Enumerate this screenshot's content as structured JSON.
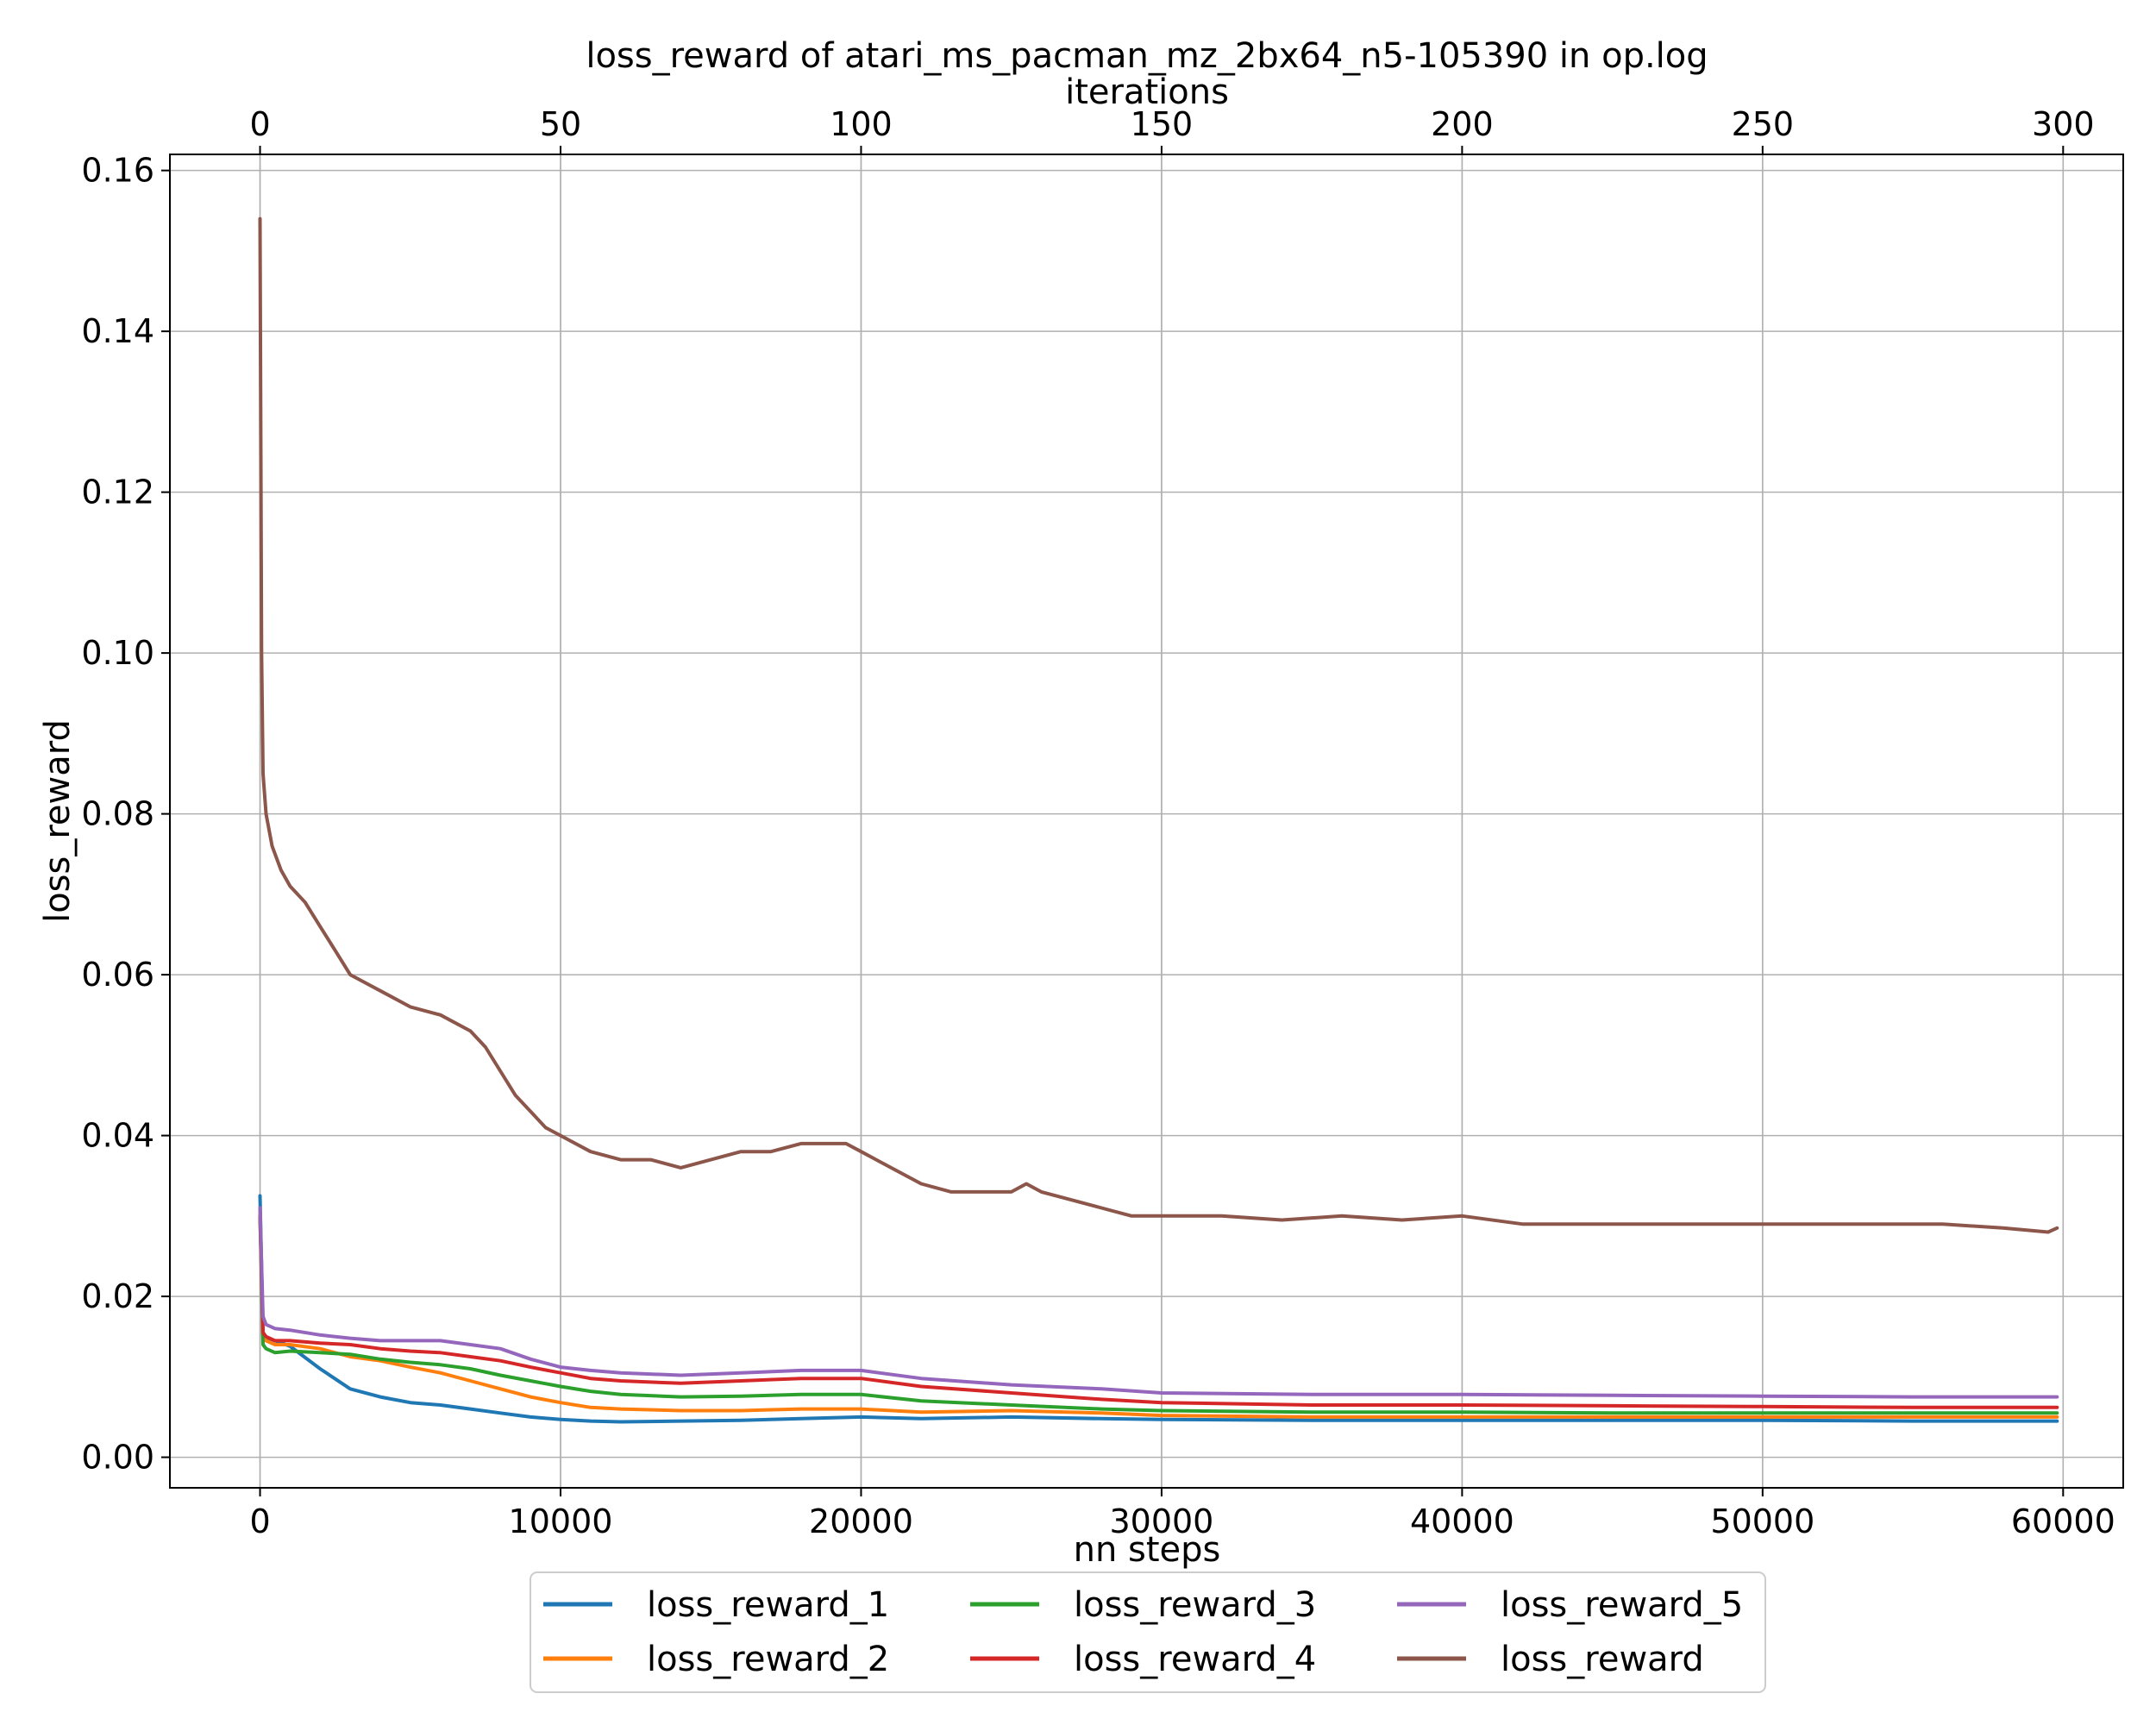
{
  "chart_data": {
    "type": "line",
    "title": "loss_reward of atari_ms_pacman_mz_2bx64_n5-105390 in op.log",
    "xlabel": "nn steps",
    "ylabel": "loss_reward",
    "x2label": "iterations",
    "xlim": [
      -3000,
      62000
    ],
    "ylim": [
      -0.0038,
      0.162
    ],
    "x2lim": [
      -15,
      310
    ],
    "xticks": [
      0,
      10000,
      20000,
      30000,
      40000,
      50000,
      60000
    ],
    "xtick_labels": [
      "0",
      "10000",
      "20000",
      "30000",
      "40000",
      "50000",
      "60000"
    ],
    "yticks": [
      0.0,
      0.02,
      0.04,
      0.06,
      0.08,
      0.1,
      0.12,
      0.14,
      0.16
    ],
    "ytick_labels": [
      "0.00",
      "0.02",
      "0.04",
      "0.06",
      "0.08",
      "0.10",
      "0.12",
      "0.14",
      "0.16"
    ],
    "x2ticks": [
      0,
      50,
      100,
      150,
      200,
      250,
      300
    ],
    "x2tick_labels": [
      "0",
      "50",
      "100",
      "150",
      "200",
      "250",
      "300"
    ],
    "grid": true,
    "legend_position": "bottom-center, below axis",
    "series": [
      {
        "name": "loss_reward_1",
        "color": "#1f77b4",
        "x": [
          0,
          100,
          200,
          500,
          1000,
          2000,
          3000,
          4000,
          5000,
          6000,
          7000,
          8000,
          9000,
          10000,
          11000,
          12000,
          14000,
          16000,
          18000,
          20000,
          22000,
          25000,
          28000,
          30000,
          35000,
          40000,
          45000,
          50000,
          55000,
          59800
        ],
        "y": [
          0.0325,
          0.015,
          0.0148,
          0.0145,
          0.0138,
          0.011,
          0.0085,
          0.0075,
          0.0068,
          0.0065,
          0.006,
          0.0055,
          0.005,
          0.0047,
          0.0045,
          0.0044,
          0.0045,
          0.0046,
          0.0048,
          0.005,
          0.0048,
          0.005,
          0.0048,
          0.0047,
          0.0046,
          0.0046,
          0.0046,
          0.0046,
          0.0045,
          0.0045
        ]
      },
      {
        "name": "loss_reward_2",
        "color": "#ff7f0e",
        "x": [
          0,
          100,
          200,
          500,
          1000,
          2000,
          3000,
          4000,
          5000,
          6000,
          7000,
          8000,
          9000,
          10000,
          11000,
          12000,
          14000,
          16000,
          18000,
          20000,
          22000,
          25000,
          28000,
          30000,
          35000,
          40000,
          45000,
          50000,
          55000,
          59800
        ],
        "y": [
          0.031,
          0.015,
          0.0145,
          0.014,
          0.014,
          0.0135,
          0.0125,
          0.012,
          0.0112,
          0.0105,
          0.0095,
          0.0085,
          0.0075,
          0.0068,
          0.0062,
          0.006,
          0.0058,
          0.0058,
          0.006,
          0.006,
          0.0056,
          0.0058,
          0.0055,
          0.0052,
          0.005,
          0.005,
          0.005,
          0.005,
          0.005,
          0.005
        ]
      },
      {
        "name": "loss_reward_3",
        "color": "#2ca02c",
        "x": [
          0,
          100,
          200,
          500,
          1000,
          2000,
          3000,
          4000,
          5000,
          6000,
          7000,
          8000,
          9000,
          10000,
          11000,
          12000,
          14000,
          16000,
          18000,
          20000,
          22000,
          25000,
          28000,
          30000,
          35000,
          40000,
          45000,
          50000,
          55000,
          59800
        ],
        "y": [
          0.03,
          0.014,
          0.0135,
          0.013,
          0.0132,
          0.013,
          0.0128,
          0.0122,
          0.0118,
          0.0115,
          0.011,
          0.0102,
          0.0095,
          0.0088,
          0.0082,
          0.0078,
          0.0075,
          0.0076,
          0.0078,
          0.0078,
          0.007,
          0.0065,
          0.006,
          0.0058,
          0.0056,
          0.0056,
          0.0055,
          0.0055,
          0.0055,
          0.0055
        ]
      },
      {
        "name": "loss_reward_4",
        "color": "#d62728",
        "x": [
          0,
          100,
          200,
          500,
          1000,
          2000,
          3000,
          4000,
          5000,
          6000,
          7000,
          8000,
          9000,
          10000,
          11000,
          12000,
          14000,
          16000,
          18000,
          20000,
          22000,
          25000,
          28000,
          30000,
          35000,
          40000,
          45000,
          50000,
          55000,
          59800
        ],
        "y": [
          0.03,
          0.0155,
          0.015,
          0.0145,
          0.0145,
          0.0142,
          0.014,
          0.0135,
          0.0132,
          0.013,
          0.0125,
          0.012,
          0.0112,
          0.0105,
          0.0098,
          0.0095,
          0.0092,
          0.0095,
          0.0098,
          0.0098,
          0.0088,
          0.008,
          0.0072,
          0.0068,
          0.0065,
          0.0065,
          0.0064,
          0.0063,
          0.0062,
          0.0062
        ]
      },
      {
        "name": "loss_reward_5",
        "color": "#9467bd",
        "x": [
          0,
          100,
          200,
          500,
          1000,
          2000,
          3000,
          4000,
          5000,
          6000,
          7000,
          8000,
          9000,
          10000,
          11000,
          12000,
          14000,
          16000,
          18000,
          20000,
          22000,
          25000,
          28000,
          30000,
          35000,
          40000,
          45000,
          50000,
          55000,
          59800
        ],
        "y": [
          0.031,
          0.0175,
          0.0165,
          0.016,
          0.0158,
          0.0152,
          0.0148,
          0.0145,
          0.0145,
          0.0145,
          0.014,
          0.0135,
          0.0122,
          0.0112,
          0.0108,
          0.0105,
          0.0102,
          0.0105,
          0.0108,
          0.0108,
          0.0098,
          0.009,
          0.0085,
          0.008,
          0.0078,
          0.0078,
          0.0077,
          0.0076,
          0.0075,
          0.0075
        ]
      },
      {
        "name": "loss_reward",
        "color": "#8c564b",
        "x": [
          0,
          50,
          100,
          200,
          400,
          700,
          1000,
          1500,
          2000,
          2500,
          3000,
          4000,
          5000,
          6000,
          7000,
          7500,
          8000,
          8500,
          9000,
          9500,
          10000,
          11000,
          12000,
          13000,
          14000,
          15000,
          16000,
          17000,
          18000,
          19000,
          19500,
          20000,
          21000,
          22000,
          23000,
          24000,
          25000,
          25500,
          26000,
          27000,
          28000,
          29000,
          30000,
          32000,
          34000,
          36000,
          38000,
          40000,
          42000,
          44000,
          46000,
          48000,
          50000,
          52000,
          54000,
          56000,
          58000,
          59500,
          59800
        ],
        "y": [
          0.154,
          0.1,
          0.085,
          0.08,
          0.076,
          0.073,
          0.071,
          0.069,
          0.066,
          0.063,
          0.06,
          0.058,
          0.056,
          0.055,
          0.053,
          0.051,
          0.048,
          0.045,
          0.043,
          0.041,
          0.04,
          0.038,
          0.037,
          0.037,
          0.036,
          0.037,
          0.038,
          0.038,
          0.039,
          0.039,
          0.039,
          0.038,
          0.036,
          0.034,
          0.033,
          0.033,
          0.033,
          0.034,
          0.033,
          0.032,
          0.031,
          0.03,
          0.03,
          0.03,
          0.0295,
          0.03,
          0.0295,
          0.03,
          0.029,
          0.029,
          0.029,
          0.029,
          0.029,
          0.029,
          0.029,
          0.029,
          0.0285,
          0.028,
          0.0285
        ]
      }
    ]
  }
}
